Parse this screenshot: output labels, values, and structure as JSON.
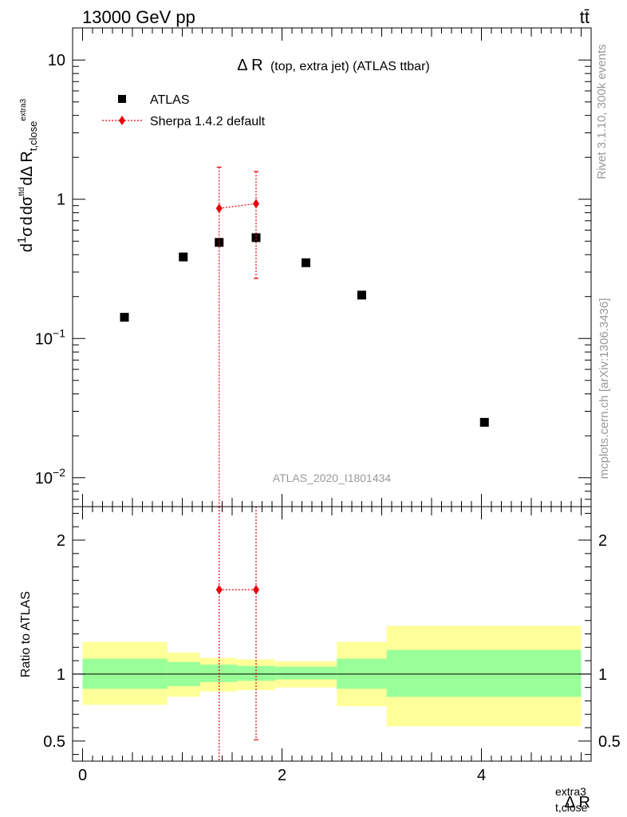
{
  "header": {
    "left": "13000 GeV pp",
    "right": "tt̄"
  },
  "side": {
    "rivet": "Rivet 3.1.10,  300k events",
    "mcplots": "mcplots.cern.ch [arXiv:1306.3436]"
  },
  "colors": {
    "atlas": "#000000",
    "sherpa": "#e8000b",
    "band_inner": "#99ff99",
    "band_outer": "#ffff99"
  },
  "chart_data": [
    {
      "type": "scatter",
      "title": "Δ R (top, extra jet) (ATLAS ttbar)",
      "title_main": "Δ R",
      "title_sub": "(top, extra jet) (ATLAS ttbar)",
      "watermark": "ATLAS_2020_I1801434",
      "ylabel": "1/σ dσ/dΔ R_{t,close}^{extra3}",
      "yscale": "log",
      "ylim": [
        0.0062,
        17
      ],
      "xlim": [
        -0.1,
        5.1
      ],
      "y_ticks": [
        {
          "value": 10,
          "label": "10"
        },
        {
          "value": 1,
          "label": "1"
        },
        {
          "value": 0.1,
          "label": "10",
          "exp": "−1"
        },
        {
          "value": 0.01,
          "label": "10",
          "exp": "−2"
        }
      ],
      "legend_position": "top-left",
      "series": [
        {
          "name": "ATLAS",
          "marker": "square",
          "color": "#000000",
          "x": [
            0.42,
            1.01,
            1.37,
            1.74,
            2.24,
            2.8,
            4.03
          ],
          "y": [
            0.142,
            0.385,
            0.49,
            0.53,
            0.35,
            0.205,
            0.025
          ]
        },
        {
          "name": "Sherpa 1.4.2 default",
          "marker": "diamond",
          "color": "#e8000b",
          "x": [
            1.37,
            1.74
          ],
          "y": [
            0.86,
            0.93
          ],
          "y_low": [
            0.0062,
            0.27
          ],
          "y_high": [
            1.7,
            1.58
          ]
        }
      ]
    },
    {
      "type": "line",
      "ylabel": "Ratio to ATLAS",
      "xlabel": "Δ R_{t,close}^{extra3}",
      "xlabel_main": "Δ R",
      "xlabel_sup": "extra3",
      "xlabel_sub": "t,close",
      "ylim": [
        0.35,
        2.25
      ],
      "xlim": [
        -0.1,
        5.1
      ],
      "x_ticks": [
        0,
        2,
        4
      ],
      "y_ticks": [
        0.5,
        1,
        2
      ],
      "reference": 1,
      "bands": [
        {
          "x0": 0.0,
          "x1": 0.85,
          "inner": [
            0.89,
            1.115
          ],
          "outer": [
            0.77,
            1.24
          ]
        },
        {
          "x0": 0.85,
          "x1": 1.18,
          "inner": [
            0.91,
            1.09
          ],
          "outer": [
            0.83,
            1.16
          ]
        },
        {
          "x0": 1.18,
          "x1": 1.55,
          "inner": [
            0.94,
            1.07
          ],
          "outer": [
            0.87,
            1.12
          ]
        },
        {
          "x0": 1.55,
          "x1": 1.93,
          "inner": [
            0.95,
            1.06
          ],
          "outer": [
            0.88,
            1.11
          ]
        },
        {
          "x0": 1.93,
          "x1": 2.55,
          "inner": [
            0.96,
            1.055
          ],
          "outer": [
            0.9,
            1.095
          ]
        },
        {
          "x0": 2.55,
          "x1": 3.05,
          "inner": [
            0.89,
            1.115
          ],
          "outer": [
            0.76,
            1.24
          ]
        },
        {
          "x0": 3.05,
          "x1": 5.0,
          "inner": [
            0.83,
            1.18
          ],
          "outer": [
            0.61,
            1.36
          ]
        }
      ],
      "series": [
        {
          "name": "Sherpa 1.4.2 default",
          "color": "#e8000b",
          "x": [
            1.37,
            1.74
          ],
          "y": [
            1.63,
            1.63
          ],
          "y_low": [
            0.35,
            0.51
          ],
          "y_high": [
            2.25,
            2.25
          ]
        }
      ]
    }
  ]
}
